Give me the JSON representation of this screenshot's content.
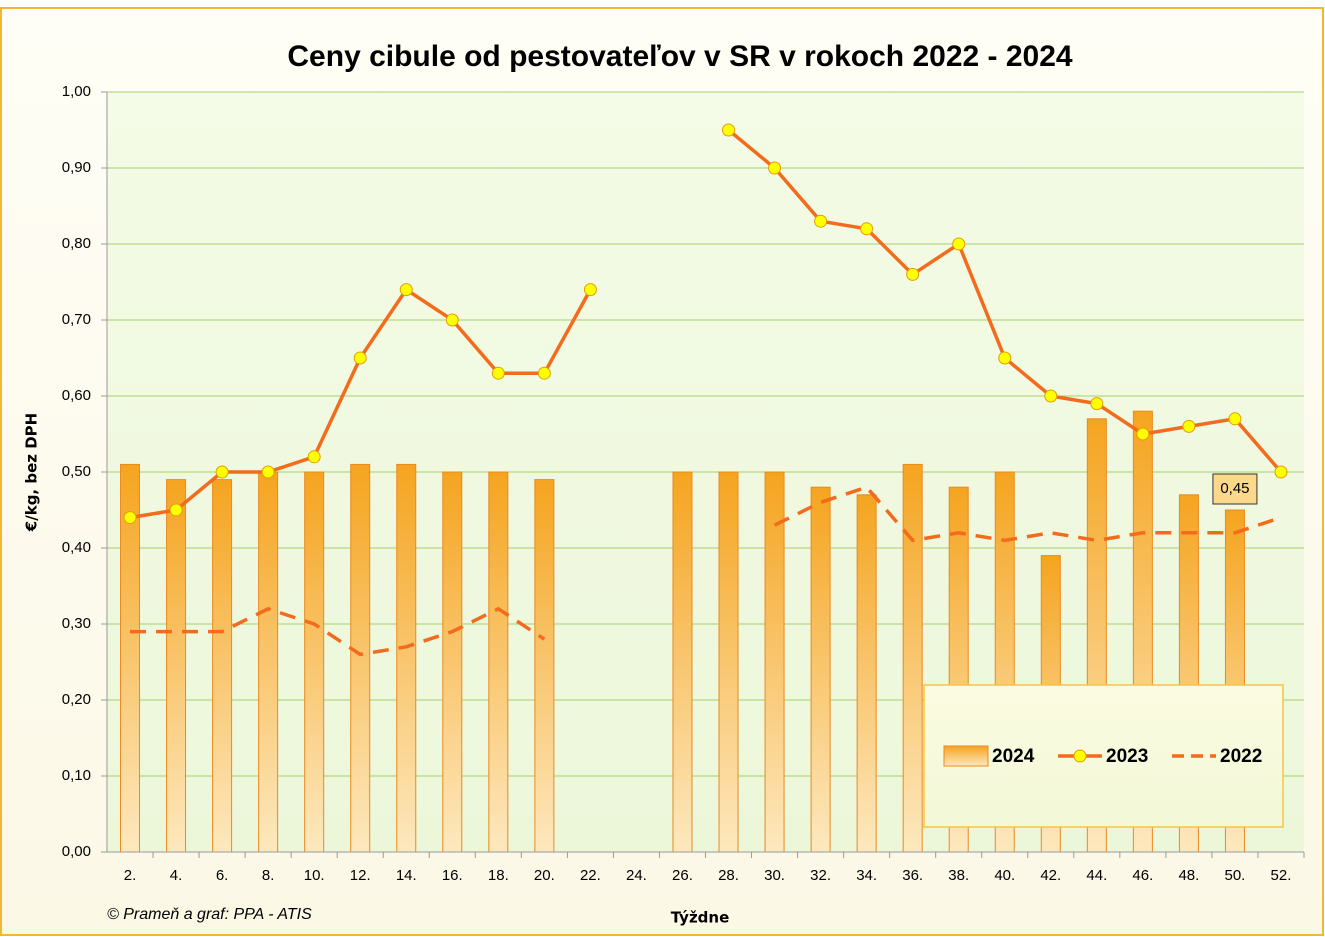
{
  "chart_data": {
    "type": "bar-line",
    "title": "Ceny cibule od pestovateľov v SR v rokoch 2022 - 2024",
    "y_label": "€/kg, bez DPH",
    "x_label": "Týždne",
    "source": "© Prameň a graf: PPA - ATIS",
    "categories": [
      "2.",
      "4.",
      "6.",
      "8.",
      "10.",
      "12.",
      "14.",
      "16.",
      "18.",
      "20.",
      "22.",
      "24.",
      "26.",
      "28.",
      "30.",
      "32.",
      "34.",
      "36.",
      "38.",
      "40.",
      "42.",
      "44.",
      "46.",
      "48.",
      "50.",
      "52."
    ],
    "series": [
      {
        "name": "2024",
        "type": "bar",
        "color": "#f5a41f",
        "values": [
          0.51,
          0.49,
          0.49,
          0.5,
          0.5,
          0.51,
          0.51,
          0.5,
          0.5,
          0.49,
          null,
          null,
          0.5,
          0.5,
          0.5,
          0.48,
          0.47,
          0.51,
          0.48,
          0.5,
          0.39,
          0.57,
          0.58,
          0.47,
          0.45,
          null
        ],
        "value_labels": [
          null,
          null,
          null,
          null,
          null,
          null,
          null,
          null,
          null,
          null,
          null,
          null,
          null,
          null,
          null,
          null,
          null,
          null,
          null,
          null,
          null,
          null,
          null,
          null,
          "0,45",
          null
        ]
      },
      {
        "name": "2023",
        "type": "line",
        "color": "#f36b1c",
        "marker_color": "#ffff00",
        "values": [
          0.44,
          0.45,
          0.5,
          0.5,
          0.52,
          0.65,
          0.74,
          0.7,
          0.63,
          0.63,
          0.74,
          null,
          null,
          0.95,
          0.9,
          0.83,
          0.82,
          0.76,
          0.8,
          0.65,
          0.6,
          0.59,
          0.55,
          0.56,
          0.57,
          0.5
        ]
      },
      {
        "name": "2022",
        "type": "dashed",
        "color": "#f36b1c",
        "values": [
          0.29,
          0.29,
          0.29,
          0.32,
          0.3,
          0.26,
          0.27,
          0.29,
          0.32,
          0.28,
          null,
          null,
          null,
          null,
          0.43,
          0.46,
          0.48,
          0.41,
          0.42,
          0.41,
          0.42,
          0.41,
          0.42,
          0.42,
          0.42,
          0.44
        ]
      }
    ],
    "ylim": [
      0,
      1
    ],
    "yticks": [
      {
        "value": 0,
        "label": "0,00"
      },
      {
        "value": 0.1,
        "label": "0,10"
      },
      {
        "value": 0.2,
        "label": "0,20"
      },
      {
        "value": 0.3,
        "label": "0,30"
      },
      {
        "value": 0.4,
        "label": "0,40"
      },
      {
        "value": 0.5,
        "label": "0,50"
      },
      {
        "value": 0.6,
        "label": "0,60"
      },
      {
        "value": 0.7,
        "label": "0,70"
      },
      {
        "value": 0.8,
        "label": "0,80"
      },
      {
        "value": 0.9,
        "label": "0,90"
      },
      {
        "value": 1,
        "label": "1,00"
      }
    ],
    "grid": true
  }
}
